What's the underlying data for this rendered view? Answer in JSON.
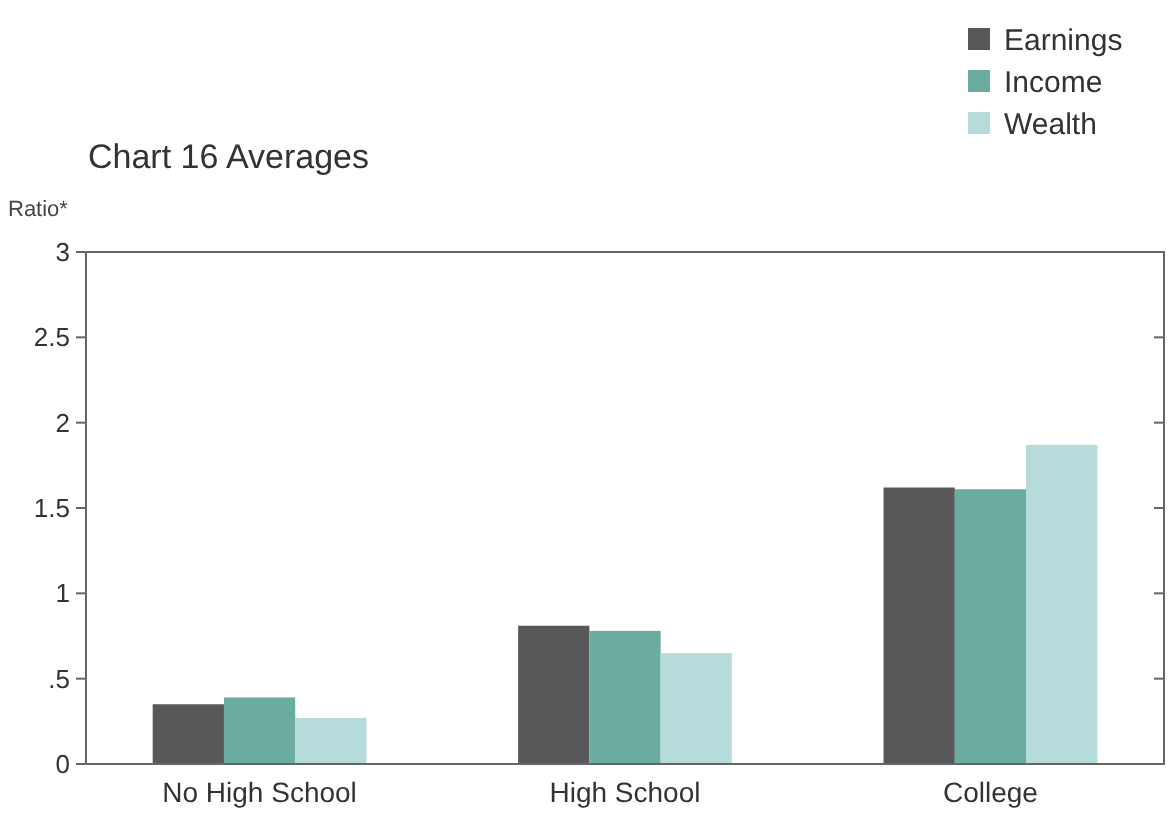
{
  "chart_data": {
    "type": "bar",
    "title": "Chart 16   Averages",
    "ylabel": "Ratio*",
    "categories": [
      "No High School",
      "High School",
      "College"
    ],
    "series": [
      {
        "name": "Earnings",
        "color": "#58585a",
        "values": [
          0.35,
          0.81,
          1.62
        ]
      },
      {
        "name": "Income",
        "color": "#6aaca0",
        "values": [
          0.39,
          0.78,
          1.61
        ]
      },
      {
        "name": "Wealth",
        "color": "#b5dcdb",
        "values": [
          0.27,
          0.65,
          1.87
        ]
      }
    ],
    "ylim": [
      0,
      3
    ],
    "yticks": [
      0,
      {
        "value": 0.5,
        "label": ".5"
      },
      1,
      1.5,
      2,
      2.5,
      3
    ],
    "grid": false,
    "legend": "top right"
  }
}
